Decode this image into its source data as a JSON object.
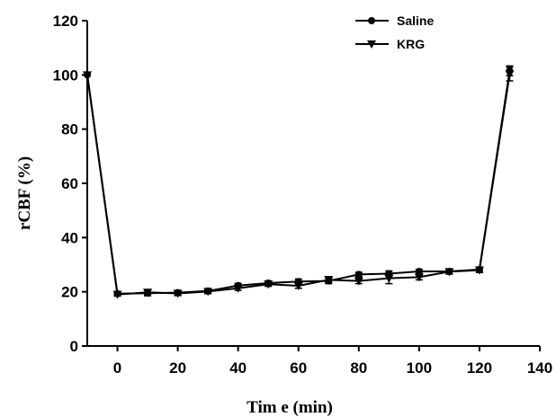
{
  "chart_data": {
    "type": "line",
    "xlabel": "Tim e (min)",
    "ylabel": "rCBF (%)",
    "xlim": [
      -10,
      140
    ],
    "ylim": [
      0,
      120
    ],
    "x_ticks": [
      0,
      20,
      40,
      60,
      80,
      100,
      120,
      140
    ],
    "y_ticks": [
      0,
      20,
      40,
      60,
      80,
      100,
      120
    ],
    "x_tick_labels": [
      "0",
      "20",
      "40",
      "60",
      "80",
      "100",
      "120",
      "140"
    ],
    "y_tick_labels": [
      "0",
      "20",
      "40",
      "60",
      "80",
      "100",
      "120"
    ],
    "grid": false,
    "legend_position": "top-right",
    "series": [
      {
        "name": "Saline",
        "marker": "circle",
        "color": "#000000",
        "x": [
          -10,
          0,
          10,
          20,
          30,
          40,
          50,
          60,
          70,
          80,
          90,
          100,
          110,
          120,
          130
        ],
        "y": [
          100,
          19.3,
          19.5,
          19.7,
          20.3,
          22.3,
          23.2,
          23.8,
          24.0,
          26.4,
          26.7,
          27.5,
          27.5,
          28.2,
          101.5
        ],
        "err": [
          0,
          0.6,
          1.0,
          0.8,
          0.8,
          0.8,
          0.8,
          0.9,
          1.0,
          0.8,
          1.0,
          0.8,
          0.9,
          0.9,
          1.8
        ]
      },
      {
        "name": "KRG",
        "marker": "triangle-down",
        "color": "#000000",
        "x": [
          -10,
          0,
          10,
          20,
          30,
          40,
          50,
          60,
          70,
          80,
          90,
          100,
          110,
          120,
          130
        ],
        "y": [
          100,
          19.0,
          19.8,
          19.4,
          20.1,
          21.3,
          22.8,
          22.2,
          24.4,
          24.0,
          25.0,
          25.4,
          27.4,
          28.0,
          100.3
        ],
        "err": [
          0,
          0.6,
          1.0,
          0.8,
          0.8,
          0.8,
          0.8,
          0.9,
          1.2,
          1.0,
          2.0,
          1.0,
          0.9,
          0.9,
          2.5
        ]
      }
    ]
  }
}
